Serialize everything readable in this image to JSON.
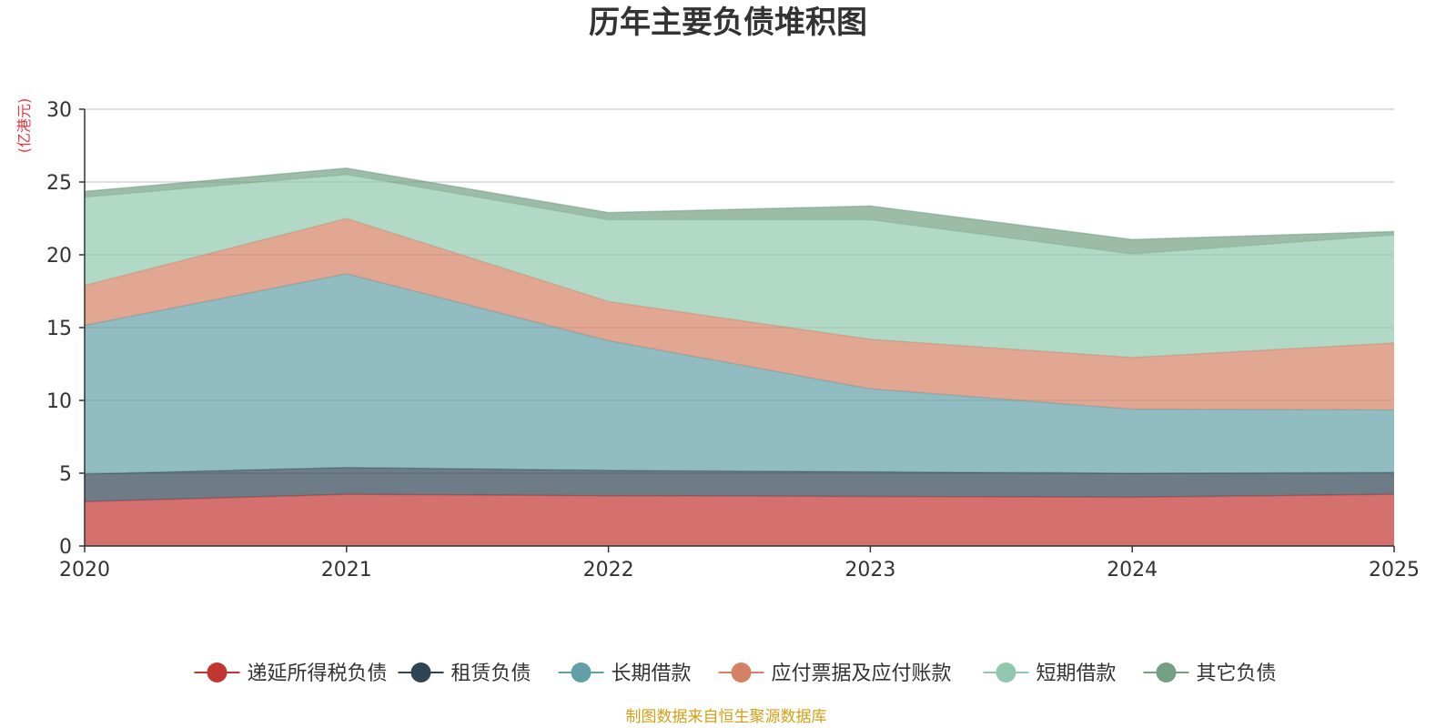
{
  "chart_data": {
    "type": "area",
    "stacked": true,
    "title": "历年主要负债堆积图",
    "unit_label": "(亿港元)",
    "source": "制图数据来自恒生聚源数据库",
    "x": [
      "2020",
      "2021",
      "2022",
      "2023",
      "2024",
      "2025"
    ],
    "ylim": [
      0,
      30
    ],
    "yticks": [
      0,
      5,
      10,
      15,
      20,
      25,
      30
    ],
    "grid": true,
    "legend_position": "bottom",
    "series": [
      {
        "name": "递延所得税负债",
        "color": "#c23531",
        "values": [
          3.05,
          3.55,
          3.45,
          3.4,
          3.35,
          3.55
        ]
      },
      {
        "name": "租赁负债",
        "color": "#2f4554",
        "values": [
          1.9,
          1.85,
          1.75,
          1.7,
          1.65,
          1.5
        ]
      },
      {
        "name": "长期借款",
        "color": "#61a0a8",
        "values": [
          10.2,
          13.3,
          8.9,
          5.7,
          4.4,
          4.3
        ]
      },
      {
        "name": "应付票据及应付账款",
        "color": "#d48265",
        "values": [
          2.75,
          3.8,
          2.7,
          3.4,
          3.55,
          4.6
        ]
      },
      {
        "name": "短期借款",
        "color": "#91c7ae",
        "values": [
          6.05,
          3.0,
          5.6,
          8.2,
          7.1,
          7.4
        ]
      },
      {
        "name": "其它负债",
        "color": "#749f83",
        "values": [
          0.4,
          0.45,
          0.5,
          0.95,
          1.0,
          0.25
        ]
      }
    ]
  }
}
